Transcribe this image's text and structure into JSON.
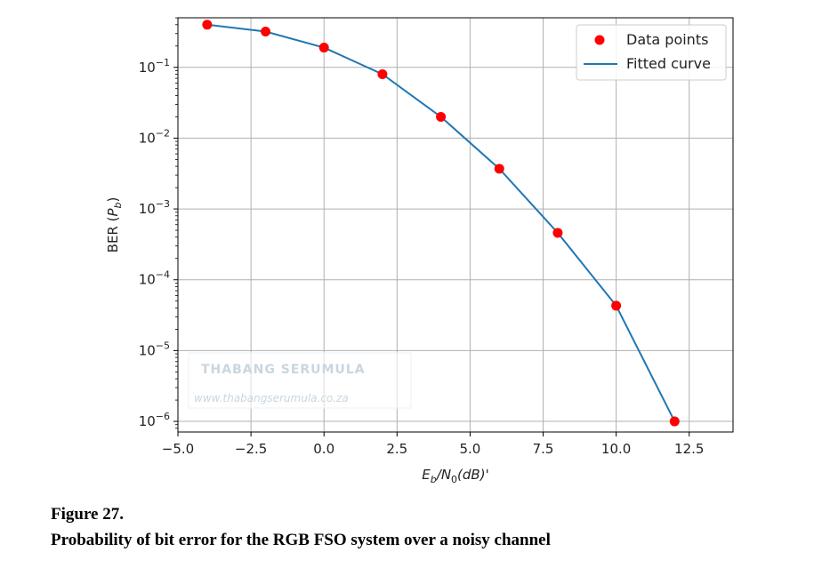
{
  "chart_data": {
    "type": "scatter+line",
    "xlabel": "E_b/N_0(dB)'",
    "ylabel": "BER (P_b)",
    "xlim": [
      -5.0,
      14.0
    ],
    "ylim_log10": [
      -6.15,
      -0.3
    ],
    "yscale": "log",
    "grid": true,
    "legend_placement": "top-right",
    "x_ticks": [
      "−5.0",
      "−2.5",
      "0.0",
      "2.5",
      "5.0",
      "7.5",
      "10.0",
      "12.5"
    ],
    "x_tick_values": [
      -5.0,
      -2.5,
      0.0,
      2.5,
      5.0,
      7.5,
      10.0,
      12.5
    ],
    "y_tick_exponents": [
      -1,
      -2,
      -3,
      -4,
      -5,
      -6
    ],
    "series": [
      {
        "name": "Data points",
        "kind": "scatter",
        "color": "#ff0000",
        "x": [
          -4,
          -2,
          0,
          2,
          4,
          6,
          8,
          10,
          12
        ],
        "y": [
          0.4,
          0.32,
          0.19,
          0.08,
          0.02,
          0.0037,
          0.00046,
          4.3e-05,
          1e-06
        ]
      },
      {
        "name": "Fitted curve",
        "kind": "line",
        "color": "#1f77b4",
        "x": [
          -4,
          -2,
          0,
          2,
          4,
          6,
          8,
          10,
          12
        ],
        "y": [
          0.4,
          0.32,
          0.19,
          0.08,
          0.02,
          0.0037,
          0.00046,
          4.3e-05,
          1e-06
        ]
      }
    ]
  },
  "watermark": {
    "title": "THABANG SERUMULA",
    "url": "www.thabangserumula.co.za"
  },
  "caption": {
    "number": "Figure 27.",
    "text": "Probability of bit error for the RGB FSO system over a noisy channel"
  }
}
